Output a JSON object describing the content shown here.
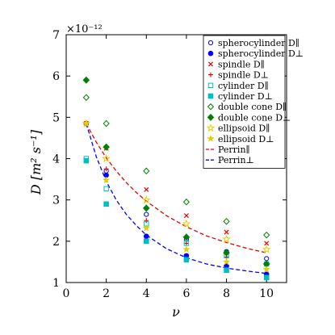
{
  "chart_data": {
    "type": "scatter",
    "title": "",
    "xlabel": "ν",
    "ylabel": "D [m² s⁻¹]",
    "y_multiplier": "×10⁻¹²",
    "xlim": [
      0,
      11
    ],
    "ylim": [
      1,
      7
    ],
    "xticks": [
      0,
      2,
      4,
      6,
      8,
      10
    ],
    "yticks": [
      1,
      2,
      3,
      4,
      5,
      6,
      7
    ],
    "grid": false,
    "legend_position": "top-right",
    "x": [
      1,
      2,
      4,
      6,
      8,
      10
    ],
    "series": [
      {
        "name": "spherocylinder D∥",
        "marker": "open-circle",
        "color": "#0000ff",
        "values": [
          4.85,
          3.7,
          2.65,
          2.05,
          1.75,
          1.58
        ]
      },
      {
        "name": "spherocylinder D⊥",
        "marker": "filled-circle",
        "color": "#0000ff",
        "values": [
          4.85,
          3.6,
          2.12,
          1.65,
          1.4,
          1.2
        ]
      },
      {
        "name": "spindle D∥",
        "marker": "x",
        "color": "#e00000",
        "values": [
          4.85,
          4.25,
          3.25,
          2.62,
          2.22,
          1.95
        ]
      },
      {
        "name": "spindle D⊥",
        "marker": "plus",
        "color": "#e00000",
        "values": [
          4.85,
          3.75,
          2.5,
          1.95,
          1.62,
          1.42
        ]
      },
      {
        "name": "cylinder D∥",
        "marker": "open-square",
        "color": "#00bfbf",
        "values": [
          4.0,
          3.27,
          2.42,
          1.95,
          1.65,
          1.45
        ]
      },
      {
        "name": "cylinder D⊥",
        "marker": "filled-square",
        "color": "#00bfbf",
        "values": [
          3.95,
          2.9,
          2.0,
          1.55,
          1.3,
          1.12
        ]
      },
      {
        "name": "double cone D∥",
        "marker": "open-diamond",
        "color": "#008000",
        "values": [
          5.48,
          4.85,
          3.7,
          2.95,
          2.48,
          2.15
        ]
      },
      {
        "name": "double cone D⊥",
        "marker": "filled-diamond",
        "color": "#008000",
        "values": [
          5.9,
          4.28,
          2.8,
          2.1,
          1.72,
          1.45
        ]
      },
      {
        "name": "ellipsoid D∥",
        "marker": "open-star",
        "color": "#e0d000",
        "values": [
          4.85,
          4.0,
          3.0,
          2.42,
          2.05,
          1.8
        ]
      },
      {
        "name": "ellipsoid D⊥",
        "marker": "filled-star",
        "color": "#e0d000",
        "values": [
          4.85,
          3.48,
          2.32,
          1.8,
          1.5,
          1.32
        ]
      }
    ],
    "curves": [
      {
        "name": "Perrin∥",
        "style": "dashed",
        "color": "#e00000",
        "x": [
          1,
          1.5,
          2,
          2.5,
          3,
          3.5,
          4,
          5,
          6,
          7,
          8,
          9,
          10
        ],
        "values": [
          4.85,
          4.4,
          4.02,
          3.7,
          3.42,
          3.18,
          2.97,
          2.62,
          2.35,
          2.13,
          1.97,
          1.83,
          1.72
        ]
      },
      {
        "name": "Perrin⊥",
        "style": "dashed",
        "color": "#0000ff",
        "x": [
          1,
          1.5,
          2,
          2.5,
          3,
          3.5,
          4,
          5,
          6,
          7,
          8,
          9,
          10
        ],
        "values": [
          4.85,
          4.05,
          3.45,
          3.0,
          2.65,
          2.38,
          2.15,
          1.82,
          1.6,
          1.45,
          1.35,
          1.28,
          1.22
        ]
      }
    ]
  }
}
